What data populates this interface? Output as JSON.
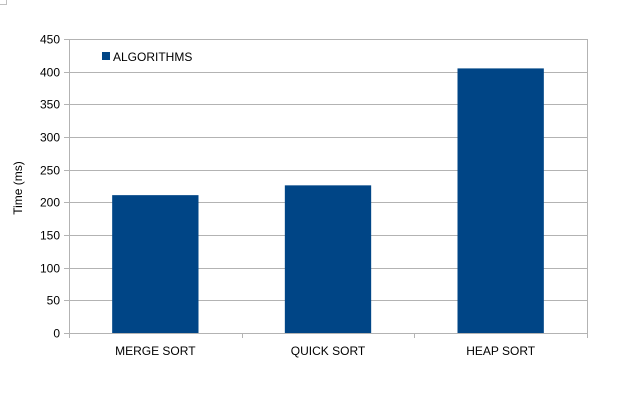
{
  "chart_data": {
    "type": "bar",
    "categories": [
      "MERGE SORT",
      "QUICK SORT",
      "HEAP SORT"
    ],
    "series": [
      {
        "name": "ALGORITHMS",
        "values": [
          211,
          226,
          405
        ],
        "color": "#004586"
      }
    ],
    "xlabel": "",
    "ylabel": "Time (ms)",
    "ylim": [
      0,
      450
    ],
    "ytick_step": 50,
    "grid": true,
    "legend": "top-left"
  },
  "colors": {
    "grid": "#b3b3b3",
    "axis": "#b3b3b3"
  }
}
